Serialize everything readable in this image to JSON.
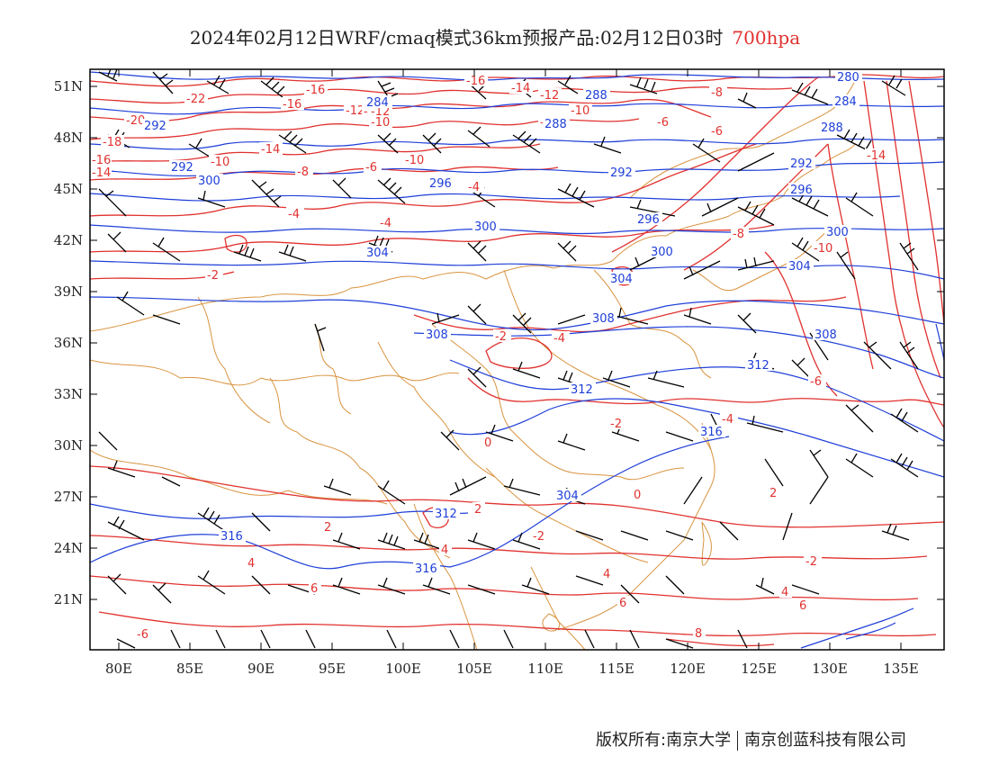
{
  "header": {
    "title": "2024年02月12日WRF/cmaq模式36km预报产品:02月12日03时",
    "level": "700hpa",
    "level_color": "#e0322f"
  },
  "axes": {
    "lat_labels": [
      "51N",
      "48N",
      "45N",
      "42N",
      "39N",
      "36N",
      "33N",
      "30N",
      "27N",
      "24N",
      "21N"
    ],
    "lon_labels": [
      "80E",
      "85E",
      "90E",
      "95E",
      "100E",
      "105E",
      "110E",
      "115E",
      "120E",
      "125E",
      "130E",
      "135E"
    ]
  },
  "colors": {
    "temperature": "#e0322f",
    "height": "#1f3fd8",
    "border": "#d99441",
    "wind": "#000000"
  },
  "temperature_labels": [
    "-22",
    "-20",
    "-18",
    "-16",
    "-14",
    "-16",
    "-12",
    "-10",
    "-16",
    "-14",
    "-12",
    "-10",
    "-8",
    "-6",
    "-4",
    "-2",
    "-4",
    "-2",
    "0",
    "-2",
    "-4",
    "-6",
    "-8",
    "-10",
    "-6",
    "-8",
    "-10",
    "-14",
    "-12",
    "-16",
    "-6",
    "-4",
    "-2",
    "0",
    "2",
    "4",
    "2",
    "4",
    "6",
    "4",
    "6",
    "8",
    "2",
    "4",
    "6",
    "-2",
    "-4",
    "-14",
    "-12",
    "-10",
    "-8",
    "-6"
  ],
  "height_labels": [
    "280",
    "284",
    "288",
    "292",
    "296",
    "300",
    "292",
    "296",
    "300",
    "304",
    "308",
    "312",
    "316",
    "284",
    "288",
    "292",
    "304",
    "300",
    "304",
    "308",
    "312",
    "316",
    "316",
    "312",
    "308",
    "304",
    "300",
    "296",
    "292",
    "288"
  ],
  "footer": {
    "copyright": "版权所有:南京大学",
    "company": "南京创蓝科技有限公司"
  }
}
